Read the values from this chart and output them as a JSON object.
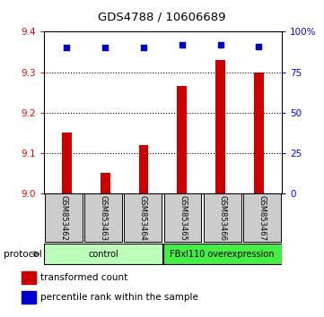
{
  "title": "GDS4788 / 10606689",
  "samples": [
    "GSM853462",
    "GSM853463",
    "GSM853464",
    "GSM853465",
    "GSM853466",
    "GSM853467"
  ],
  "bar_values": [
    9.15,
    9.05,
    9.12,
    9.265,
    9.33,
    9.3
  ],
  "percentile_values": [
    90,
    90,
    90,
    92,
    92,
    91
  ],
  "ylim_left": [
    9.0,
    9.4
  ],
  "ylim_right": [
    0,
    100
  ],
  "yticks_left": [
    9.0,
    9.1,
    9.2,
    9.3,
    9.4
  ],
  "yticks_right": [
    0,
    25,
    50,
    75,
    100
  ],
  "bar_color": "#cc0000",
  "dot_color": "#0000cc",
  "bg_color": "#ffffff",
  "protocol_groups": [
    {
      "label": "control",
      "start": 0,
      "end": 3,
      "color": "#bbffbb"
    },
    {
      "label": "FBxl110 overexpression",
      "start": 3,
      "end": 6,
      "color": "#44ee44"
    }
  ],
  "legend_bar_label": "transformed count",
  "legend_dot_label": "percentile rank within the sample",
  "protocol_label": "protocol"
}
